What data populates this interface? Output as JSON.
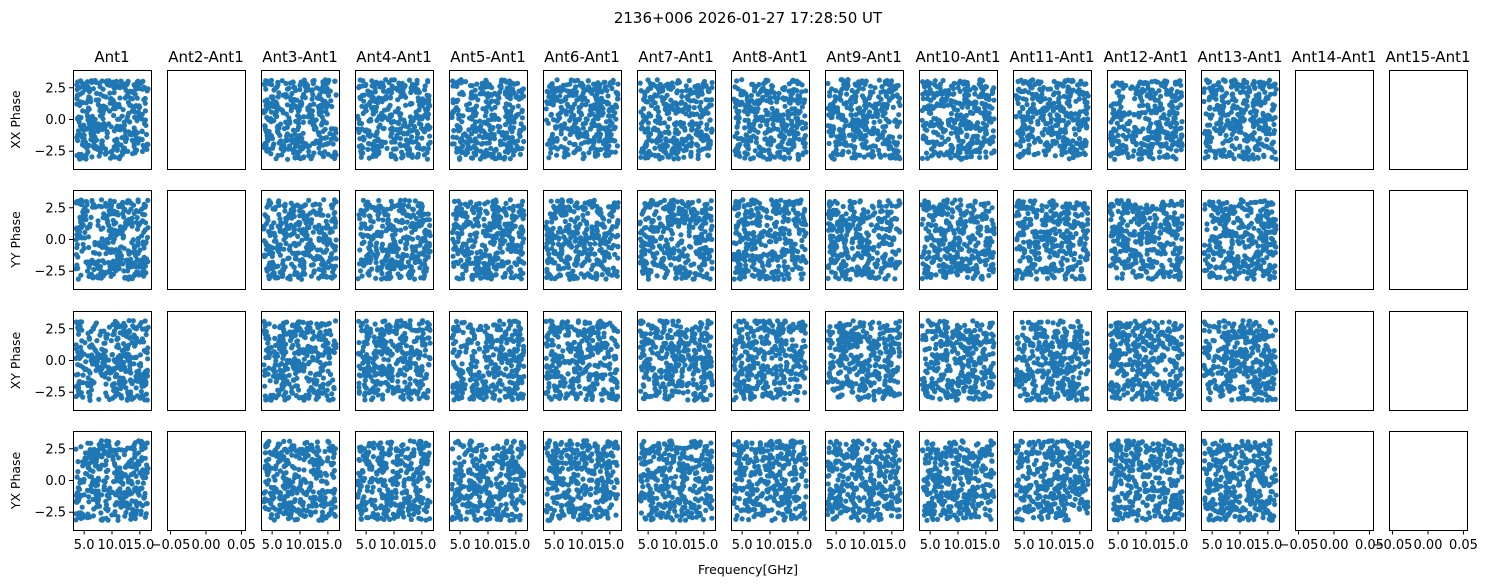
{
  "chart_data": {
    "type": "scatter",
    "title": "2136+006 2026-01-27 17:28:50 UT",
    "xlabel": "Frequency[GHz]",
    "marker_color": "#1f77b4",
    "columns": [
      "Ant1",
      "Ant2-Ant1",
      "Ant3-Ant1",
      "Ant4-Ant1",
      "Ant5-Ant1",
      "Ant6-Ant1",
      "Ant7-Ant1",
      "Ant8-Ant1",
      "Ant9-Ant1",
      "Ant10-Ant1",
      "Ant11-Ant1",
      "Ant12-Ant1",
      "Ant13-Ant1",
      "Ant14-Ant1",
      "Ant15-Ant1"
    ],
    "rows": [
      "XX Phase",
      "YY Phase",
      "XY Phase",
      "YX Phase"
    ],
    "ylim": [
      -3.9,
      3.9
    ],
    "yticks": [
      -2.5,
      0.0,
      2.5
    ],
    "ytick_labels": [
      "−2.5",
      "0.0",
      "2.5"
    ],
    "xlim_data": [
      3.0,
      17.0
    ],
    "xticks_data": [
      5.0,
      10.0,
      15.0
    ],
    "xtick_labels_data": [
      "5.0",
      "10.0",
      "15.0"
    ],
    "xlim_empty": [
      -0.055,
      0.055
    ],
    "xticks_empty": [
      -0.05,
      0.0,
      0.05
    ],
    "xtick_labels_empty": [
      "−0.05",
      "0.00",
      "0.05"
    ],
    "empty_columns": [
      1,
      13,
      14
    ],
    "points_per_panel": 340,
    "freq_range_ghz": [
      3.5,
      16.5
    ],
    "phase_range_rad": [
      -3.14,
      3.14
    ],
    "note_per_panel_values": "each populated panel shows phase values spread uniformly over −π..π across the 3.5–16.5 GHz band"
  }
}
